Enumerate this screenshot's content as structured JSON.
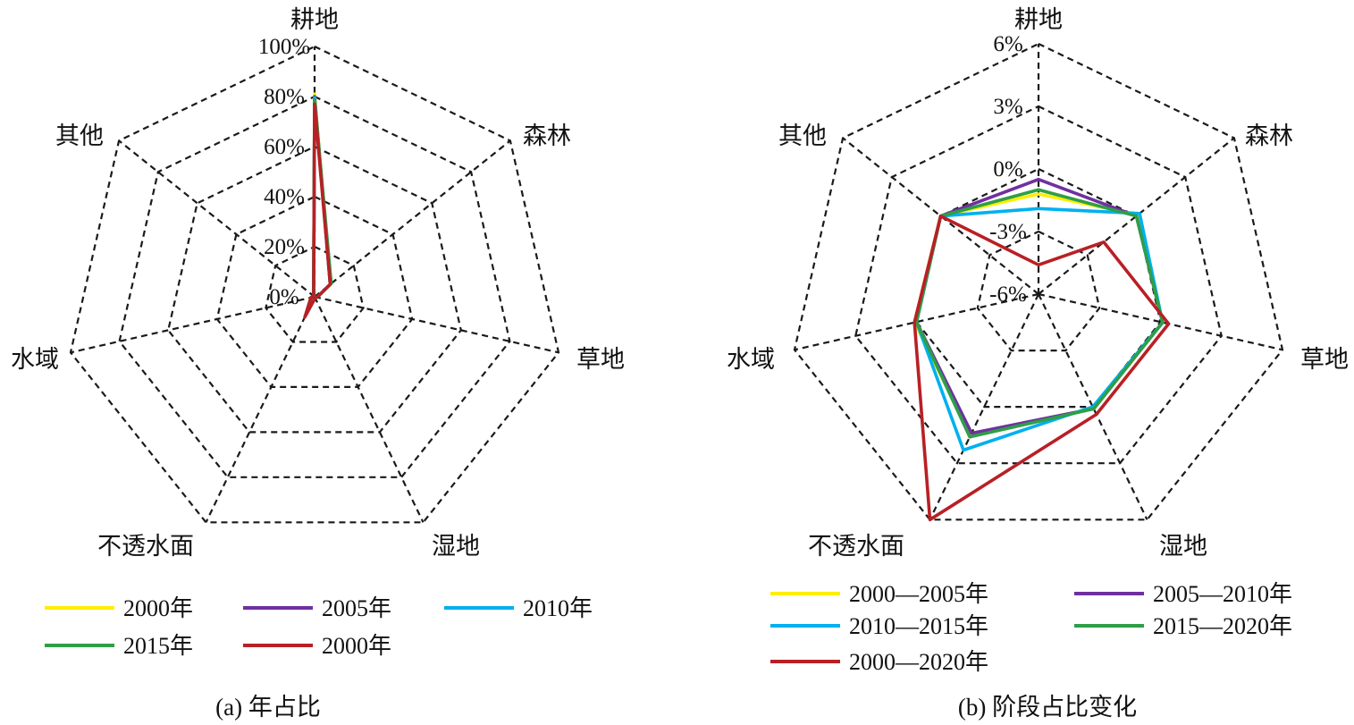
{
  "chart_data": [
    {
      "type": "radar",
      "caption": "(a) 年占比",
      "axes": [
        "耕地",
        "森林",
        "草地",
        "湿地",
        "不透水面",
        "水域",
        "其他"
      ],
      "ticks": [
        "0%",
        "20%",
        "40%",
        "60%",
        "80%",
        "100%"
      ],
      "rlim": [
        0,
        100
      ],
      "grid": true,
      "legend_position": "bottom",
      "series": [
        {
          "name": "2000年",
          "color": "#ffee00",
          "values": [
            81,
            8,
            1,
            0.5,
            5,
            1.5,
            0.5
          ]
        },
        {
          "name": "2005年",
          "color": "#7030a0",
          "values": [
            80,
            8,
            1,
            0.5,
            5.5,
            1.5,
            0.5
          ]
        },
        {
          "name": "2010年",
          "color": "#00b0f0",
          "values": [
            79.5,
            8,
            1,
            0.5,
            6,
            1.5,
            0.5
          ]
        },
        {
          "name": "2015年",
          "color": "#2e9f46",
          "values": [
            78.5,
            8.5,
            1,
            0.5,
            7,
            1.5,
            0.5
          ]
        },
        {
          "name": "2000年",
          "color": "#b82025",
          "values": [
            77,
            8,
            1,
            0.5,
            9,
            1.5,
            0.5
          ]
        }
      ]
    },
    {
      "type": "radar",
      "caption": "(b) 阶段占比变化",
      "axes": [
        "耕地",
        "森林",
        "草地",
        "湿地",
        "不透水面",
        "水域",
        "其他"
      ],
      "ticks": [
        "-6%",
        "-3%",
        "0%",
        "3%",
        "6%"
      ],
      "rlim": [
        -6,
        6
      ],
      "grid": true,
      "legend_position": "bottom",
      "series": [
        {
          "name": "2000—2005年",
          "color": "#ffee00",
          "values": [
            -1.2,
            0.1,
            0.1,
            0.1,
            1.5,
            0.1,
            0.0
          ]
        },
        {
          "name": "2005—2010年",
          "color": "#7030a0",
          "values": [
            -0.5,
            0.0,
            0.1,
            0.1,
            1.4,
            0.0,
            0.0
          ]
        },
        {
          "name": "2010—2015年",
          "color": "#00b0f0",
          "values": [
            -1.9,
            0.2,
            0.1,
            0.0,
            2.3,
            0.0,
            0.0
          ]
        },
        {
          "name": "2015—2020年",
          "color": "#2e9f46",
          "values": [
            -1.0,
            0.0,
            0.1,
            0.1,
            1.6,
            0.0,
            0.0
          ]
        },
        {
          "name": "2000—2020年",
          "color": "#b82025",
          "values": [
            -4.6,
            -2.0,
            0.4,
            0.4,
            6.0,
            0.1,
            0.0
          ]
        }
      ]
    }
  ]
}
